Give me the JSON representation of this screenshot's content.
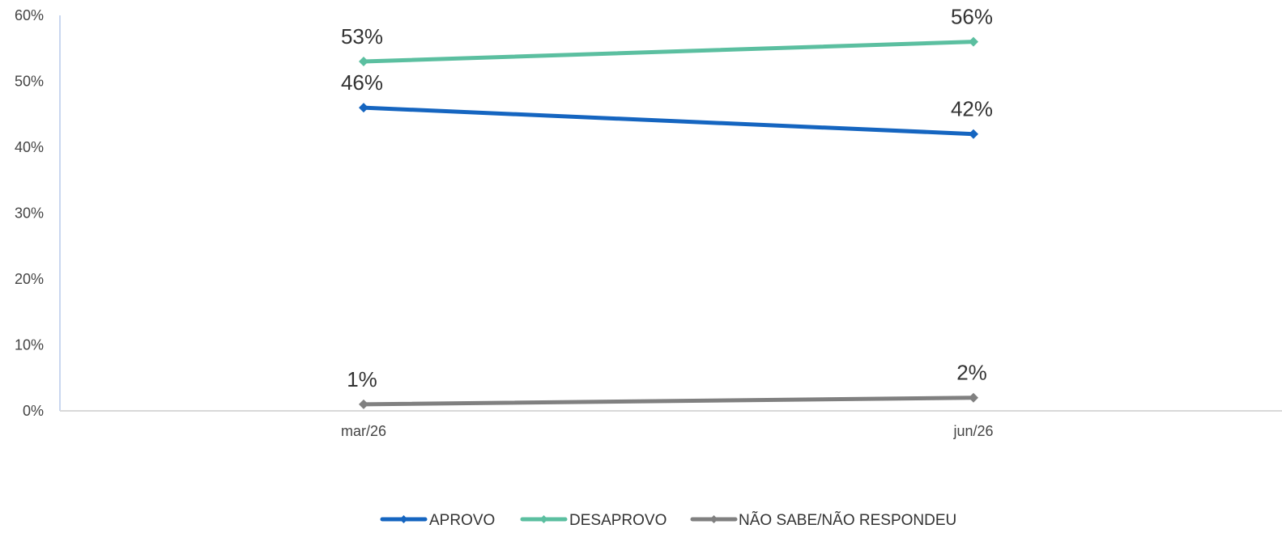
{
  "chart_data": {
    "type": "line",
    "categories": [
      "mar/26",
      "jun/26"
    ],
    "ylim": [
      0,
      60
    ],
    "yticks": [
      "0%",
      "10%",
      "20%",
      "30%",
      "40%",
      "50%",
      "60%"
    ],
    "grid": false,
    "legend_position": "bottom",
    "series": [
      {
        "name": "APROVO",
        "values": [
          46,
          42
        ],
        "labels": [
          "46%",
          "42%"
        ],
        "color": "#1565c0"
      },
      {
        "name": "DESAPROVO",
        "values": [
          53,
          56
        ],
        "labels": [
          "53%",
          "56%"
        ],
        "color": "#5bbfa0"
      },
      {
        "name": "NÃO SABE/NÃO RESPONDEU",
        "values": [
          1,
          2
        ],
        "labels": [
          "1%",
          "2%"
        ],
        "color": "#808080"
      }
    ]
  }
}
